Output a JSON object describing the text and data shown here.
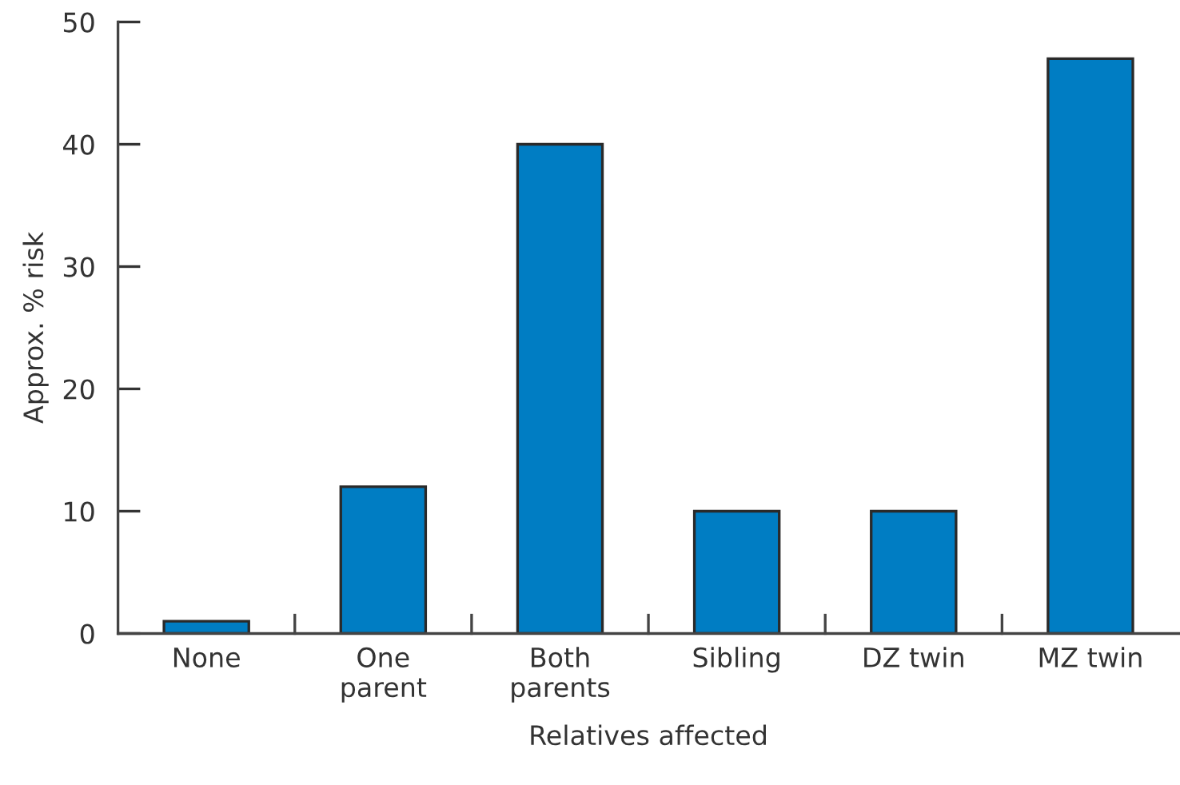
{
  "chart_data": {
    "type": "bar",
    "xlabel": "Relatives affected",
    "ylabel": "Approx. % risk",
    "categories": [
      "None",
      "One\nparent",
      "Both\nparents",
      "Sibling",
      "DZ twin",
      "MZ twin"
    ],
    "values": [
      1,
      12,
      40,
      10,
      10,
      47
    ],
    "color": "#007dc3",
    "ylim": [
      0,
      50
    ],
    "yticks": [
      0,
      10,
      20,
      30,
      40,
      50
    ],
    "grid": false
  }
}
